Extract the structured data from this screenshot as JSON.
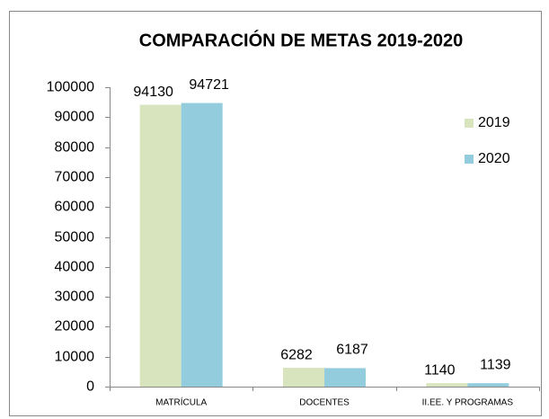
{
  "chart_data": {
    "type": "bar",
    "title": "COMPARACIÓN DE METAS 2019-2020",
    "categories": [
      "MATRÍCULA",
      "DOCENTES",
      "II.EE. Y PROGRAMAS"
    ],
    "series": [
      {
        "name": "2019",
        "color": "#d7e4bd",
        "values": [
          94130,
          6282,
          1140
        ]
      },
      {
        "name": "2020",
        "color": "#93cddd",
        "values": [
          94721,
          6187,
          1139
        ]
      }
    ],
    "ylim": [
      0,
      100000
    ],
    "yticks": [
      0,
      10000,
      20000,
      30000,
      40000,
      50000,
      60000,
      70000,
      80000,
      90000,
      100000
    ],
    "grid": false,
    "legend": "right"
  }
}
